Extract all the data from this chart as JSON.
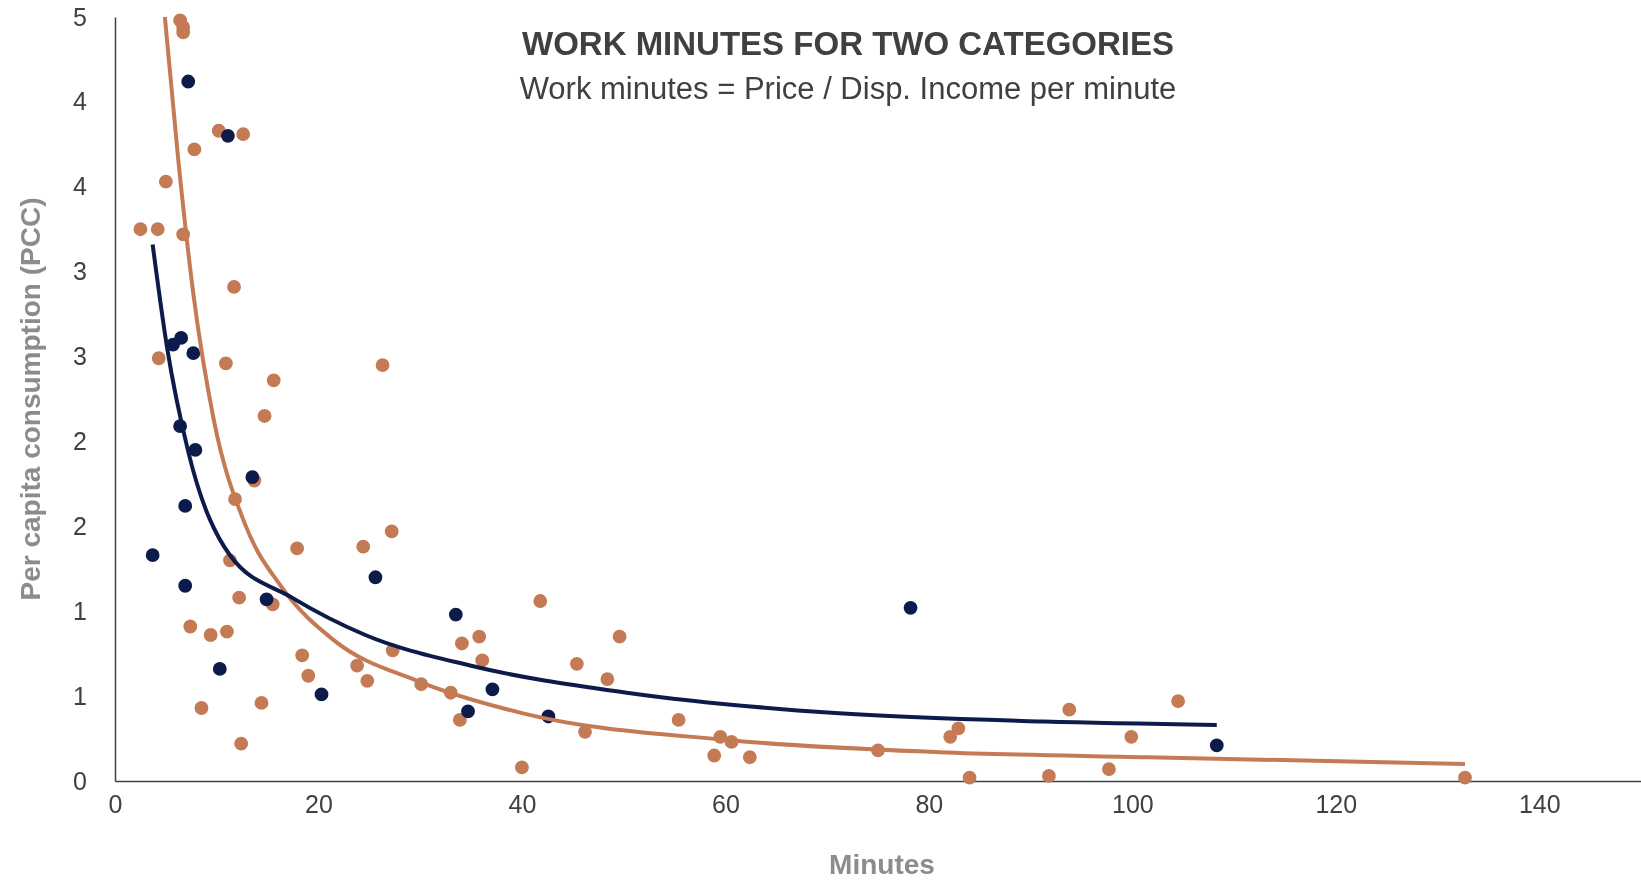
{
  "chart_data": {
    "type": "scatter",
    "title": "WORK MINUTES FOR TWO CATEGORIES",
    "subtitle": "Work minutes = Price / Disp. Income per minute",
    "xlabel": "Minutes",
    "ylabel": "Per capita consumption (PCC)",
    "xlim": [
      0,
      150
    ],
    "xticks": [
      0,
      20,
      40,
      60,
      80,
      100,
      120,
      140
    ],
    "ylim": [
      0,
      4.5
    ],
    "yticks": [
      0,
      {
        "value": 0.5,
        "label": "1"
      },
      1,
      {
        "value": 1.5,
        "label": "2"
      },
      2,
      {
        "value": 2.5,
        "label": "3"
      },
      3,
      {
        "value": 3.5,
        "label": "4"
      },
      4,
      {
        "value": 4.5,
        "label": "5"
      }
    ],
    "grid": false,
    "marker": "circle",
    "series": [
      {
        "color": "#c47b55",
        "x": [
          2.5,
          4.2,
          5.0,
          4.3,
          6.4,
          6.7,
          6.7,
          6.7,
          7.8,
          10.2,
          12.6,
          11.7,
          10.9,
          15.6,
          14.7,
          13.7,
          11.8,
          11.3,
          12.2,
          15.5,
          7.4,
          9.4,
          11.0,
          8.5,
          14.4,
          12.4,
          17.9,
          18.4,
          19.0,
          23.8,
          24.8,
          24.4,
          26.3,
          27.2,
          27.3,
          30.1,
          33.0,
          34.1,
          35.8,
          36.1,
          33.9,
          40.0,
          41.8,
          45.4,
          48.4,
          49.6,
          46.2,
          55.4,
          58.9,
          59.5,
          60.6,
          62.4,
          75.0,
          82.1,
          82.9,
          84.0,
          91.8,
          93.8,
          97.7,
          99.9,
          104.5,
          132.7
        ],
        "values": [
          3.25,
          3.25,
          3.53,
          2.49,
          4.48,
          4.44,
          4.41,
          3.22,
          3.72,
          3.83,
          3.81,
          2.91,
          2.46,
          2.36,
          2.15,
          1.77,
          1.66,
          1.3,
          1.08,
          1.04,
          0.91,
          0.86,
          0.88,
          0.43,
          0.46,
          0.22,
          1.37,
          0.74,
          0.62,
          0.68,
          0.59,
          1.38,
          2.45,
          1.47,
          0.77,
          0.57,
          0.52,
          0.81,
          0.85,
          0.71,
          0.36,
          0.08,
          1.06,
          0.69,
          0.6,
          0.85,
          0.29,
          0.36,
          0.15,
          0.26,
          0.23,
          0.14,
          0.18,
          0.26,
          0.31,
          0.02,
          0.03,
          0.42,
          0.07,
          0.26,
          0.47,
          0.02
        ]
      },
      {
        "color": "#0d1b4b",
        "x": [
          3.7,
          5.7,
          6.5,
          7.7,
          6.4,
          7.9,
          6.9,
          6.9,
          7.2,
          11.1,
          13.5,
          14.9,
          10.3,
          20.3,
          25.6,
          33.5,
          34.7,
          37.1,
          42.6,
          78.2,
          108.3
        ],
        "values": [
          1.33,
          2.57,
          2.61,
          2.52,
          2.09,
          1.95,
          1.62,
          1.15,
          4.12,
          3.8,
          1.79,
          1.07,
          0.66,
          0.51,
          1.2,
          0.98,
          0.41,
          0.54,
          0.38,
          1.02,
          0.21
        ]
      },
      {
        "type": "line",
        "color": "#c47b55",
        "marker": "none",
        "x": [
          4.9,
          6.2,
          7.7,
          9.7,
          12.8,
          16.4,
          21.5,
          29.7,
          40,
          60.5,
          81,
          101.5,
          132.7
        ],
        "values": [
          4.5,
          3.67,
          2.87,
          2.13,
          1.51,
          1.14,
          0.83,
          0.59,
          0.4,
          0.24,
          0.17,
          0.14,
          0.1
        ]
      },
      {
        "type": "line",
        "color": "#0d1b4b",
        "marker": "none",
        "x": [
          3.7,
          5.1,
          7.2,
          11.3,
          17.4,
          24.6,
          34.9,
          50.3,
          70.8,
          91.3,
          108.3
        ],
        "values": [
          3.16,
          2.56,
          1.94,
          1.33,
          1.08,
          0.86,
          0.68,
          0.52,
          0.4,
          0.35,
          0.33
        ]
      }
    ]
  }
}
